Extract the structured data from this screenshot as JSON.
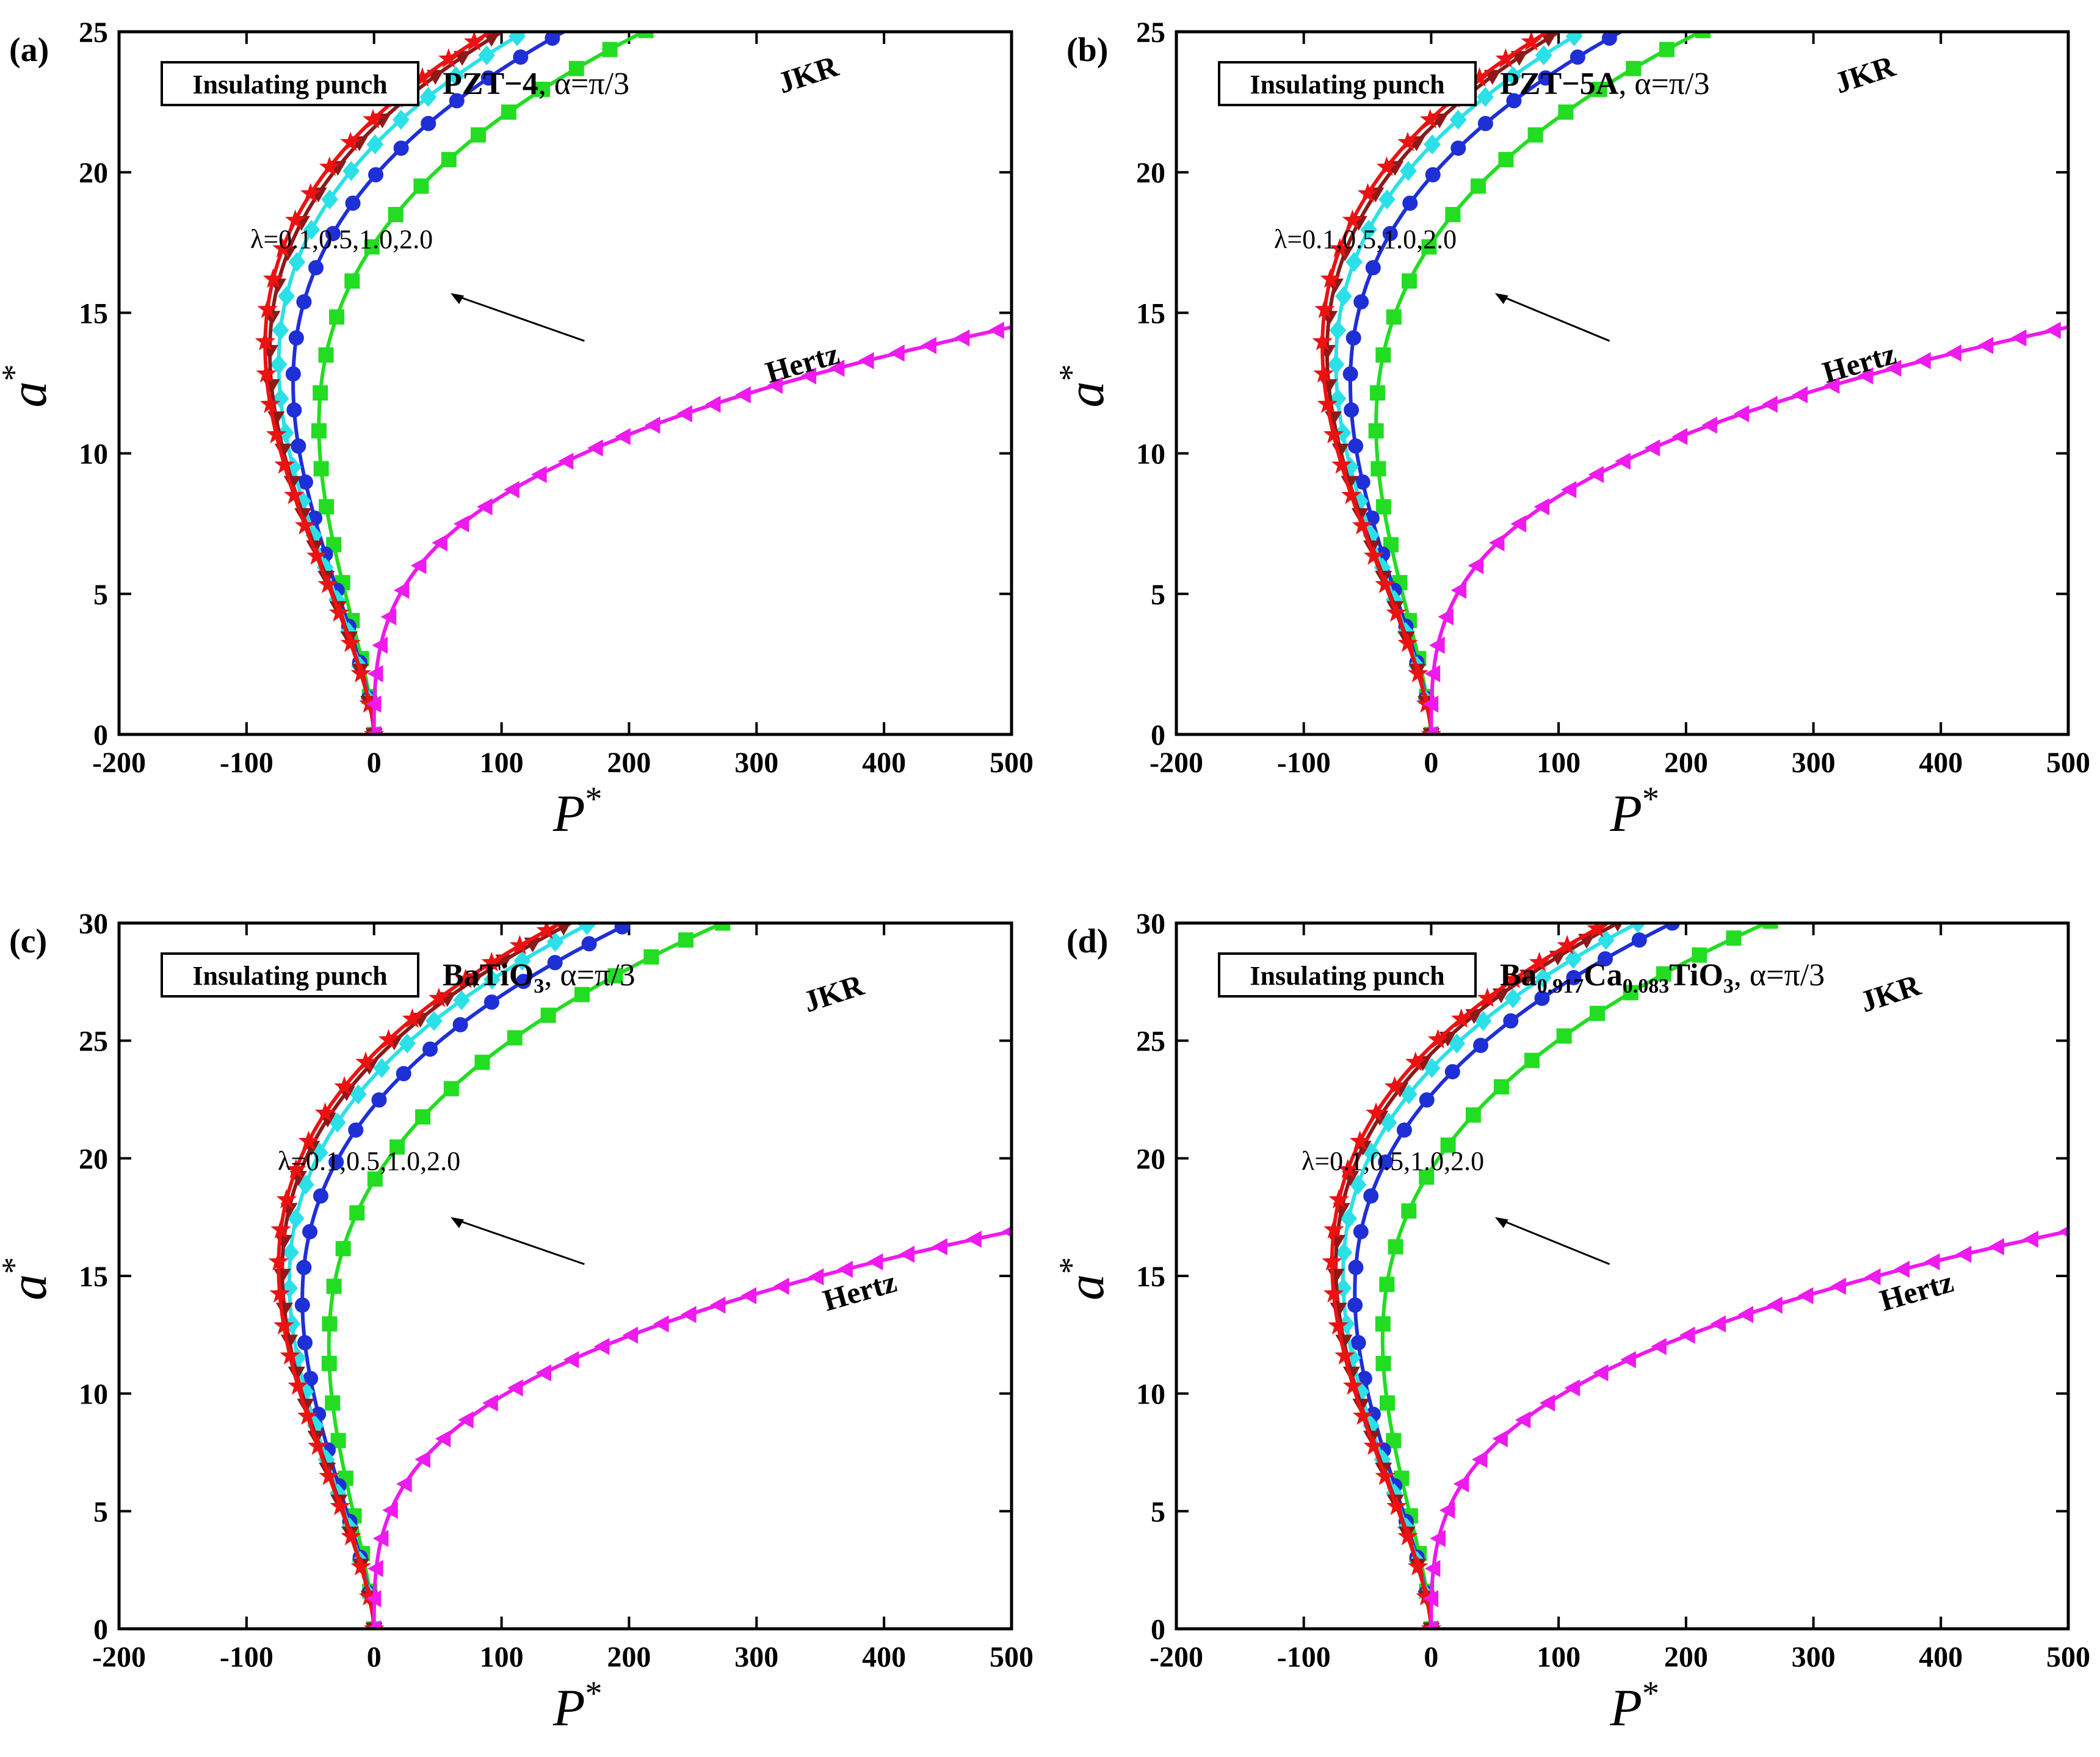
{
  "figure": {
    "xlabel": "P",
    "xlabel_sup": "*",
    "ylabel": "a",
    "ylabel_sup": "*"
  },
  "colors": {
    "lambda_0.1": "#22dd22",
    "lambda_0.5": "#1f2fd6",
    "lambda_1.0": "#2ce0e8",
    "lambda_2.0": "#8b1a1a",
    "jkr": "#ee1111",
    "hertz": "#ee1aee"
  },
  "chart_data": [
    {
      "panel": "(a)",
      "type": "line",
      "box_label": "Insulating punch",
      "material": "PZT−4",
      "material_suffix": ", α=π/3",
      "annotation": "λ=0.1,0.5,1.0,2.0",
      "jkr_label": "JKR",
      "hertz_label": "Hertz",
      "xlim": [
        -200,
        500
      ],
      "ylim": [
        0,
        25
      ],
      "xticks": [
        -200,
        -100,
        0,
        100,
        200,
        300,
        400,
        500
      ],
      "yticks": [
        0,
        5,
        10,
        15,
        20,
        25
      ],
      "series": [
        {
          "name": "λ=0.1",
          "a0": 11.0,
          "markers": "square"
        },
        {
          "name": "λ=0.5",
          "a0": 12.5,
          "markers": "circle"
        },
        {
          "name": "λ=1.0",
          "a0": 13.2,
          "markers": "diamond"
        },
        {
          "name": "λ=2.0",
          "a0": 13.6,
          "markers": "triangle-down"
        },
        {
          "name": "JKR",
          "a0": 13.8,
          "markers": "star"
        },
        {
          "name": "Hertz",
          "a0": 0,
          "markers": "triangle-left"
        }
      ]
    },
    {
      "panel": "(b)",
      "type": "line",
      "box_label": "Insulating punch",
      "material": "PZT−5A",
      "material_suffix": ", α=π/3",
      "annotation": "λ=0.1,0.5,1.0,2.0",
      "jkr_label": "JKR",
      "hertz_label": "Hertz",
      "xlim": [
        -200,
        500
      ],
      "ylim": [
        0,
        25
      ],
      "xticks": [
        -200,
        -100,
        0,
        100,
        200,
        300,
        400,
        500
      ],
      "yticks": [
        0,
        5,
        10,
        15,
        20,
        25
      ],
      "series": [
        {
          "name": "λ=0.1",
          "a0": 11.0,
          "markers": "square"
        },
        {
          "name": "λ=0.5",
          "a0": 12.5,
          "markers": "circle"
        },
        {
          "name": "λ=1.0",
          "a0": 13.2,
          "markers": "diamond"
        },
        {
          "name": "λ=2.0",
          "a0": 13.6,
          "markers": "triangle-down"
        },
        {
          "name": "JKR",
          "a0": 13.8,
          "markers": "star"
        },
        {
          "name": "Hertz",
          "a0": 0,
          "markers": "triangle-left"
        }
      ]
    },
    {
      "panel": "(c)",
      "type": "line",
      "box_label": "Insulating punch",
      "material": "BaTiO",
      "material_sub": "3",
      "material_suffix": ",    α=π/3",
      "annotation": "λ=0.1,0.5,1.0,2.0",
      "jkr_label": "JKR",
      "hertz_label": "Hertz",
      "xlim": [
        -200,
        500
      ],
      "ylim": [
        0,
        30
      ],
      "xticks": [
        -200,
        -100,
        0,
        100,
        200,
        300,
        400,
        500
      ],
      "yticks": [
        0,
        5,
        10,
        15,
        20,
        25,
        30
      ],
      "series": [
        {
          "name": "λ=0.1",
          "a0": 12.0,
          "markers": "square"
        },
        {
          "name": "λ=0.5",
          "a0": 14.0,
          "markers": "circle"
        },
        {
          "name": "λ=1.0",
          "a0": 14.8,
          "markers": "diamond"
        },
        {
          "name": "λ=2.0",
          "a0": 15.2,
          "markers": "triangle-down"
        },
        {
          "name": "JKR",
          "a0": 15.4,
          "markers": "star"
        },
        {
          "name": "Hertz",
          "a0": 0,
          "markers": "triangle-left"
        }
      ]
    },
    {
      "panel": "(d)",
      "type": "line",
      "box_label": "Insulating punch",
      "material_parts": [
        "Ba",
        "0.917",
        "Ca",
        "0.083",
        "TiO",
        "3"
      ],
      "material_suffix": ", α=π/3",
      "annotation": "λ=0.1,0.5,1.0,2.0",
      "jkr_label": "JKR",
      "hertz_label": "Hertz",
      "xlim": [
        -200,
        500
      ],
      "ylim": [
        0,
        30
      ],
      "xticks": [
        -200,
        -100,
        0,
        100,
        200,
        300,
        400,
        500
      ],
      "yticks": [
        0,
        5,
        10,
        15,
        20,
        25,
        30
      ],
      "series": [
        {
          "name": "λ=0.1",
          "a0": 12.3,
          "markers": "square"
        },
        {
          "name": "λ=0.5",
          "a0": 14.3,
          "markers": "circle"
        },
        {
          "name": "λ=1.0",
          "a0": 15.0,
          "markers": "diamond"
        },
        {
          "name": "λ=2.0",
          "a0": 15.4,
          "markers": "triangle-down"
        },
        {
          "name": "JKR",
          "a0": 15.6,
          "markers": "star"
        },
        {
          "name": "Hertz",
          "a0": 0,
          "markers": "triangle-left"
        }
      ]
    }
  ]
}
